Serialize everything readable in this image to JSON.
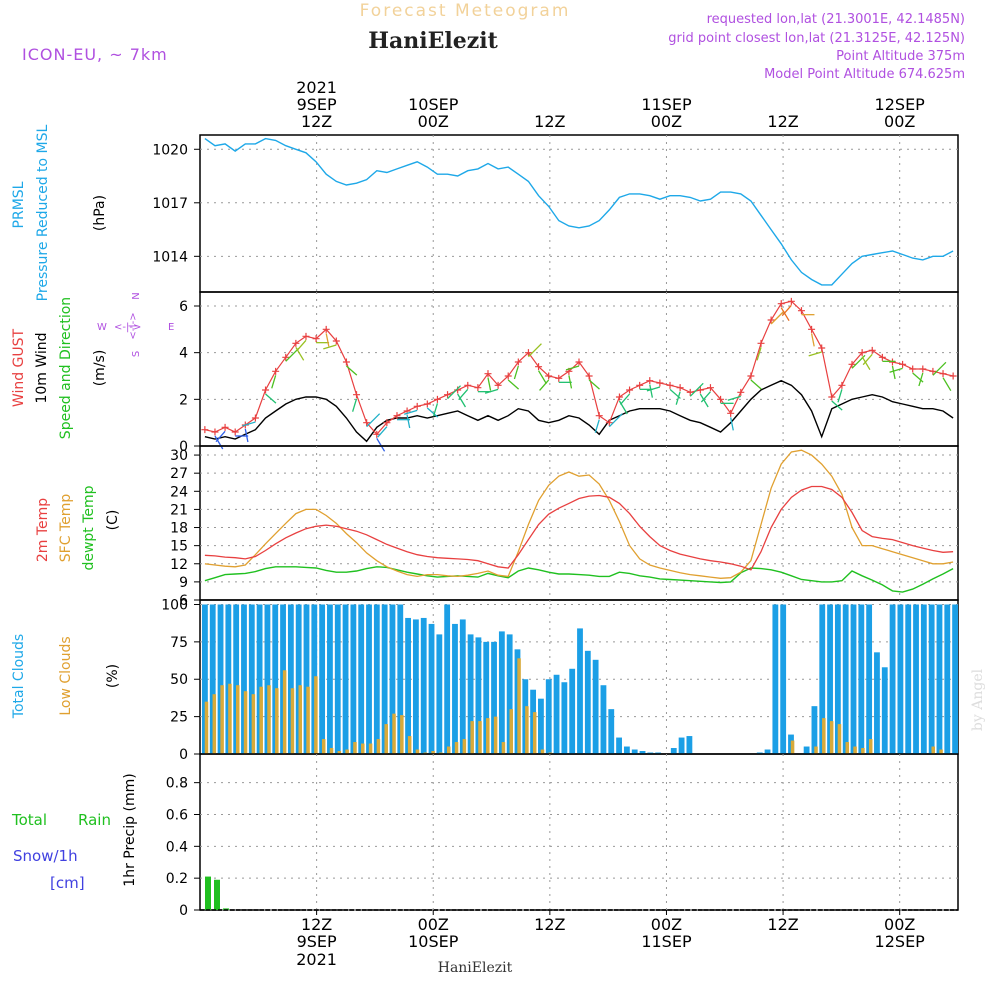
{
  "header": {
    "title": "Forecast Meteogram",
    "location": "HaniElezit",
    "model": "ICON-EU, ~ 7km",
    "requested": "requested lon,lat (21.3001E, 42.1485N)",
    "grid_point": "grid point closest lon,lat (21.3125E, 42.125N)",
    "point_alt": "Point Altitude 375m",
    "model_alt": "Model Point Altitude 674.625m"
  },
  "footer": {
    "station": "HaniElezit",
    "watermark": "by Angel"
  },
  "time_axis": {
    "year": "2021",
    "top_labels": [
      {
        "day": "9SEP",
        "hour": "12Z",
        "t": 12,
        "year": true
      },
      {
        "day": "10SEP",
        "hour": "00Z",
        "t": 24
      },
      {
        "day": "",
        "hour": "12Z",
        "t": 36
      },
      {
        "day": "11SEP",
        "hour": "00Z",
        "t": 48
      },
      {
        "day": "",
        "hour": "12Z",
        "t": 60
      },
      {
        "day": "12SEP",
        "hour": "00Z",
        "t": 72
      }
    ],
    "bottom_labels": [
      {
        "hour": "12Z",
        "day": "9SEP",
        "year": "2021",
        "t": 12
      },
      {
        "hour": "00Z",
        "day": "10SEP",
        "t": 24
      },
      {
        "hour": "12Z",
        "day": "",
        "t": 36
      },
      {
        "hour": "00Z",
        "day": "11SEP",
        "t": 48
      },
      {
        "hour": "12Z",
        "day": "",
        "t": 60
      },
      {
        "hour": "00Z",
        "day": "12SEP",
        "t": 72
      }
    ]
  },
  "labels": {
    "pressure": [
      "PRMSL",
      "Pressure Reduced to MSL",
      "(hPa)"
    ],
    "wind_gust": "Wind GUST",
    "wind_10m": "10m Wind",
    "wind_dir": "Speed and Direction",
    "wind_unit": "(m/s)",
    "compass": {
      "n": "N",
      "s": "S",
      "w": "W",
      "e": "E",
      "arrows": "<-|->"
    },
    "temp2m": "2m Temp",
    "sfc": "SFC Temp",
    "dewpt": "dewpt Temp",
    "temp_unit": "(C)",
    "total_clouds": "Total Clouds",
    "low_clouds": "Low Clouds",
    "cloud_unit": "(%)",
    "precip": "1hr Precip (mm)",
    "total": "Total",
    "rain": "Rain",
    "snow": "Snow/1h",
    "snow_unit": "[cm]"
  },
  "colors": {
    "pressure": "#1ea8e8",
    "gust": "#e84040",
    "wind": "#000000",
    "temp2m": "#e84040",
    "sfc": "#e0a030",
    "dewpt": "#20c020",
    "total_clouds": "#1b9fe6",
    "low_clouds": "#d8aa3a",
    "rain": "#20c020",
    "snow": "#4040e0",
    "purple": "#b050e0"
  },
  "chart_data": [
    {
      "type": "line",
      "title": "PRMSL Pressure Reduced to MSL",
      "ylabel": "(hPa)",
      "ylim": [
        1012,
        1020.8
      ],
      "yticks": [
        1014,
        1017,
        1020
      ],
      "series": [
        {
          "name": "PRMSL",
          "values": [
            1020.6,
            1020.2,
            1020.3,
            1019.9,
            1020.3,
            1020.3,
            1020.6,
            1020.5,
            1020.2,
            1020.0,
            1019.8,
            1019.3,
            1018.6,
            1018.2,
            1018.0,
            1018.1,
            1018.3,
            1018.8,
            1018.7,
            1018.9,
            1019.1,
            1019.3,
            1019.0,
            1018.6,
            1018.6,
            1018.5,
            1018.8,
            1018.9,
            1019.2,
            1018.9,
            1019.0,
            1018.6,
            1018.2,
            1017.4,
            1016.8,
            1016.0,
            1015.7,
            1015.6,
            1015.7,
            1016.0,
            1016.6,
            1017.3,
            1017.5,
            1017.5,
            1017.4,
            1017.2,
            1017.4,
            1017.4,
            1017.3,
            1017.1,
            1017.2,
            1017.6,
            1017.6,
            1017.5,
            1017.1,
            1016.3,
            1015.5,
            1014.7,
            1013.8,
            1013.1,
            1012.7,
            1012.4,
            1012.4,
            1013.0,
            1013.6,
            1014.0,
            1014.1,
            1014.2,
            1014.3,
            1014.1,
            1013.9,
            1013.8,
            1014.0,
            1014.0,
            1014.3
          ]
        }
      ]
    },
    {
      "type": "line",
      "title": "Wind GUST / 10m Wind Speed and Direction",
      "ylabel": "(m/s)",
      "ylim": [
        0,
        6.6
      ],
      "yticks": [
        0,
        2,
        4,
        6
      ],
      "series": [
        {
          "name": "Wind GUST",
          "values": [
            0.7,
            0.6,
            0.8,
            0.6,
            0.9,
            1.2,
            2.4,
            3.2,
            3.8,
            4.4,
            4.7,
            4.6,
            5.0,
            4.5,
            3.6,
            2.2,
            1.0,
            0.5,
            1.0,
            1.3,
            1.5,
            1.7,
            1.8,
            2.0,
            2.2,
            2.4,
            2.6,
            2.5,
            3.1,
            2.6,
            3.0,
            3.6,
            4.0,
            3.4,
            3.0,
            2.9,
            3.2,
            3.6,
            3.0,
            1.3,
            1.0,
            2.1,
            2.4,
            2.6,
            2.8,
            2.7,
            2.6,
            2.5,
            2.3,
            2.4,
            2.5,
            2.0,
            1.4,
            2.3,
            3.0,
            4.4,
            5.4,
            6.1,
            6.2,
            5.8,
            5.0,
            4.2,
            2.1,
            2.6,
            3.5,
            4.0,
            4.1,
            3.8,
            3.6,
            3.5,
            3.3,
            3.3,
            3.2,
            3.1,
            3.0
          ]
        },
        {
          "name": "10m Wind",
          "values": [
            0.4,
            0.3,
            0.4,
            0.3,
            0.5,
            0.7,
            1.2,
            1.5,
            1.8,
            2.0,
            2.1,
            2.1,
            2.0,
            1.7,
            1.2,
            0.6,
            0.2,
            0.8,
            1.1,
            1.2,
            1.2,
            1.3,
            1.2,
            1.3,
            1.4,
            1.5,
            1.3,
            1.1,
            1.3,
            1.1,
            1.3,
            1.6,
            1.5,
            1.1,
            1.0,
            1.1,
            1.3,
            1.2,
            0.9,
            0.5,
            1.1,
            1.3,
            1.5,
            1.6,
            1.6,
            1.6,
            1.5,
            1.3,
            1.1,
            1.0,
            0.8,
            0.6,
            1.0,
            1.5,
            2.0,
            2.4,
            2.6,
            2.8,
            2.6,
            2.2,
            1.5,
            0.4,
            1.6,
            1.8,
            2.0,
            2.1,
            2.2,
            2.1,
            1.9,
            1.8,
            1.7,
            1.6,
            1.6,
            1.5,
            1.2
          ]
        }
      ]
    },
    {
      "type": "line",
      "title": "2m Temp / SFC Temp / dewpt Temp",
      "ylabel": "(C)",
      "ylim": [
        6,
        31.5
      ],
      "yticks": [
        6,
        9,
        12,
        15,
        18,
        21,
        24,
        27,
        30
      ],
      "series": [
        {
          "name": "2m Temp",
          "values": [
            13.4,
            13.3,
            13.1,
            13.0,
            12.8,
            13.2,
            14.2,
            15.3,
            16.3,
            17.1,
            17.8,
            18.2,
            18.4,
            18.2,
            17.8,
            17.4,
            16.8,
            16.0,
            15.2,
            14.6,
            14.0,
            13.5,
            13.2,
            13.0,
            12.9,
            12.8,
            12.7,
            12.5,
            12.0,
            11.5,
            11.3,
            13.5,
            16.0,
            18.5,
            20.2,
            21.2,
            22.0,
            22.8,
            23.2,
            23.3,
            23.0,
            22.0,
            20.3,
            18.2,
            16.5,
            15.0,
            14.2,
            13.6,
            13.2,
            12.8,
            12.5,
            12.3,
            12.0,
            11.6,
            11.0,
            14.0,
            18.0,
            21.0,
            23.0,
            24.2,
            24.8,
            24.8,
            24.3,
            23.0,
            20.5,
            17.5,
            16.5,
            16.2,
            16.0,
            15.5,
            15.0,
            14.6,
            14.2,
            13.9,
            14.0
          ]
        },
        {
          "name": "SFC Temp",
          "values": [
            12.0,
            11.8,
            11.6,
            11.5,
            11.8,
            13.5,
            15.3,
            17.0,
            18.7,
            20.3,
            21.0,
            21.0,
            20.0,
            18.7,
            17.0,
            15.5,
            13.8,
            12.5,
            11.5,
            10.8,
            10.2,
            9.9,
            10.2,
            10.2,
            10.0,
            9.9,
            10.1,
            10.4,
            10.8,
            10.1,
            9.9,
            14.0,
            18.5,
            22.5,
            25.0,
            26.5,
            27.2,
            26.5,
            26.7,
            25.2,
            22.5,
            19.0,
            15.0,
            12.8,
            11.8,
            11.3,
            10.9,
            10.5,
            10.2,
            10.0,
            9.8,
            9.6,
            9.7,
            10.6,
            12.5,
            18.5,
            24.5,
            28.5,
            30.5,
            30.8,
            30.0,
            28.5,
            26.5,
            23.5,
            18.0,
            15.0,
            15.0,
            14.5,
            14.0,
            13.5,
            13.0,
            12.5,
            12.0,
            12.0,
            12.3
          ]
        },
        {
          "name": "dewpt Temp",
          "values": [
            9.2,
            9.7,
            10.2,
            10.3,
            10.4,
            10.7,
            11.2,
            11.5,
            11.5,
            11.5,
            11.4,
            11.3,
            10.9,
            10.6,
            10.6,
            10.8,
            11.2,
            11.5,
            11.4,
            11.0,
            10.6,
            10.3,
            10.0,
            9.8,
            9.9,
            10.0,
            9.9,
            9.8,
            10.4,
            10.0,
            9.7,
            10.8,
            11.3,
            11.0,
            10.6,
            10.3,
            10.3,
            10.2,
            10.1,
            9.9,
            9.9,
            10.6,
            10.4,
            10.0,
            9.8,
            9.5,
            9.4,
            9.3,
            9.2,
            9.1,
            9.0,
            8.9,
            9.0,
            10.5,
            11.3,
            11.2,
            11.0,
            10.6,
            10.0,
            9.4,
            9.2,
            9.0,
            9.0,
            9.2,
            10.8,
            10.0,
            9.3,
            8.5,
            7.5,
            7.3,
            7.8,
            8.6,
            9.5,
            10.3,
            11.2
          ]
        }
      ]
    },
    {
      "type": "bar",
      "title": "Total Clouds / Low Clouds",
      "ylabel": "(%)",
      "ylim": [
        0,
        103
      ],
      "yticks": [
        0,
        25,
        50,
        75,
        100
      ],
      "series": [
        {
          "name": "Total Clouds",
          "values": [
            100,
            100,
            100,
            100,
            100,
            100,
            100,
            100,
            100,
            100,
            100,
            100,
            100,
            100,
            100,
            100,
            100,
            100,
            100,
            100,
            100,
            100,
            100,
            100,
            100,
            100,
            91,
            90,
            91,
            87,
            80,
            100,
            87,
            90,
            80,
            78,
            75,
            75,
            82,
            80,
            70,
            50,
            43,
            37,
            50,
            53,
            48,
            57,
            84,
            69,
            63,
            46,
            30,
            11,
            5,
            3,
            2,
            1,
            1,
            0,
            4,
            11,
            12,
            0,
            0,
            0,
            0,
            0,
            0,
            0,
            0,
            1,
            3,
            100,
            100,
            13,
            0,
            5,
            32,
            100,
            100,
            100,
            100,
            100,
            100,
            100,
            68,
            58,
            100,
            100,
            100,
            100,
            100,
            100,
            100,
            100,
            100
          ]
        },
        {
          "name": "Low Clouds",
          "values": [
            35,
            40,
            46,
            47,
            46,
            42,
            40,
            45,
            46,
            44,
            56,
            44,
            46,
            45,
            52,
            10,
            4,
            2,
            3,
            8,
            7,
            7,
            10,
            20,
            27,
            26,
            12,
            3,
            1,
            2,
            1,
            5,
            8,
            10,
            22,
            22,
            24,
            25,
            8,
            30,
            64,
            32,
            28,
            3,
            1,
            0,
            0,
            0,
            0,
            0,
            0,
            0,
            0,
            0,
            0,
            0,
            0,
            0,
            0,
            0,
            0,
            0,
            0,
            0,
            0,
            0,
            0,
            0,
            0,
            0,
            0,
            0,
            0,
            0,
            0,
            9,
            0,
            0,
            5,
            24,
            22,
            20,
            8,
            5,
            4,
            10,
            0,
            0,
            0,
            0,
            0,
            0,
            0,
            5,
            3,
            0,
            0
          ]
        }
      ]
    },
    {
      "type": "bar",
      "title": "Total Rain / Snow 1h",
      "ylabel": "1hr Precip (mm)",
      "ylim": [
        0,
        0.98
      ],
      "yticks": [
        0,
        0.2,
        0.4,
        0.6,
        0.8
      ],
      "series": [
        {
          "name": "Total Rain",
          "values": [
            0.21,
            0.19,
            0.01
          ]
        },
        {
          "name": "Snow/1h",
          "values": [
            0,
            0,
            0
          ]
        }
      ]
    }
  ]
}
